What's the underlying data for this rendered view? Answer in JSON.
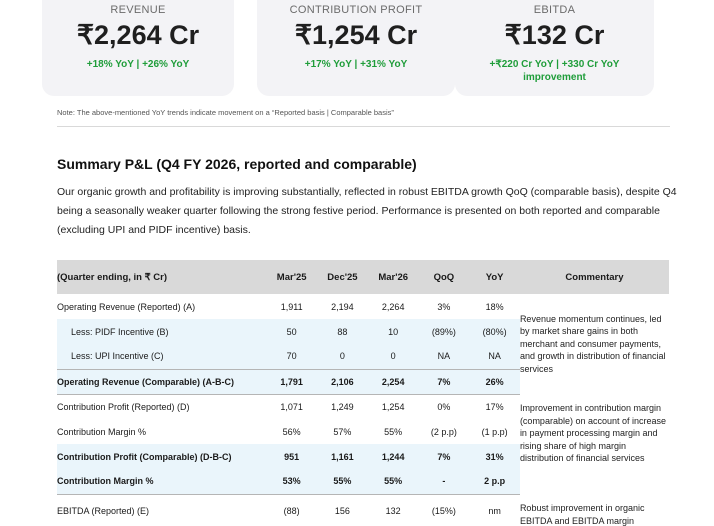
{
  "cards": [
    {
      "title": "REVENUE",
      "value": "₹2,264 Cr",
      "growth": "+18% YoY | +26% YoY"
    },
    {
      "title": "CONTRIBUTION PROFIT",
      "value": "₹1,254 Cr",
      "growth": "+17% YoY | +31% YoY"
    },
    {
      "title": "EBITDA",
      "value": "₹132 Cr",
      "growth": "+₹220 Cr YoY | +330 Cr YoY improvement"
    }
  ],
  "note": "Note: The above-mentioned YoY trends indicate movement on a “Reported basis | Comparable basis”",
  "summary": {
    "title": "Summary P&L (Q4 FY 2026, reported and comparable)",
    "paragraph": "Our organic growth and profitability is improving substantially, reflected in robust EBITDA growth QoQ (comparable basis), despite Q4 being a seasonally weaker quarter following the strong festive period. Performance is presented on both reported and comparable (excluding UPI and PIDF incentive) basis."
  },
  "table": {
    "headers": [
      "(Quarter ending, in ₹ Cr)",
      "Mar'25",
      "Dec'25",
      "Mar'26",
      "QoQ",
      "YoY",
      "Commentary"
    ],
    "rows": [
      {
        "label": "Operating Revenue (Reported) (A)",
        "values": [
          "1,911",
          "2,194",
          "2,264",
          "3%",
          "18%"
        ]
      },
      {
        "label": "Less: PIDF Incentive (B)",
        "values": [
          "50",
          "88",
          "10",
          "(89%)",
          "(80%)"
        ]
      },
      {
        "label": "Less: UPI Incentive (C)",
        "values": [
          "70",
          "0",
          "0",
          "NA",
          "NA"
        ]
      },
      {
        "label": "Operating Revenue (Comparable) (A-B-C)",
        "values": [
          "1,791",
          "2,106",
          "2,254",
          "7%",
          "26%"
        ]
      },
      {
        "label": "Contribution Profit (Reported) (D)",
        "values": [
          "1,071",
          "1,249",
          "1,254",
          "0%",
          "17%"
        ]
      },
      {
        "label": "Contribution Margin %",
        "values": [
          "56%",
          "57%",
          "55%",
          "(2 p.p)",
          "(1 p.p)"
        ]
      },
      {
        "label": "Contribution Profit (Comparable) (D-B-C)",
        "values": [
          "951",
          "1,161",
          "1,244",
          "7%",
          "31%"
        ]
      },
      {
        "label": "Contribution Margin %",
        "values": [
          "53%",
          "55%",
          "55%",
          "-",
          "2 p.p"
        ]
      },
      {
        "label": "EBITDA (Reported) (E)",
        "values": [
          "(88)",
          "156",
          "132",
          "(15%)",
          "nm"
        ]
      }
    ],
    "commentary": [
      "Revenue momentum continues, led by market share gains in both merchant and consumer payments, and growth in distribution of financial services",
      "Improvement in contribution margin (comparable) on account of increase in payment processing margin and rising share of high margin distribution of financial services",
      "Robust improvement in organic EBITDA and EBITDA margin"
    ]
  }
}
